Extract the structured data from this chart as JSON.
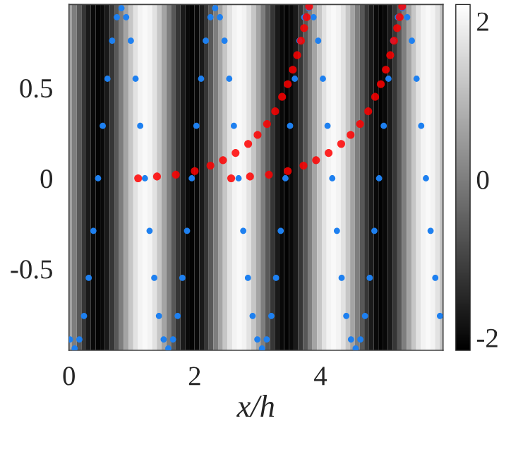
{
  "chart_data": {
    "type": "heatmap",
    "xlabel": "x/h",
    "x": [
      0.01,
      0.085,
      0.16,
      0.235,
      0.31,
      0.385,
      0.46,
      0.535,
      0.61,
      0.685,
      0.76,
      0.835,
      0.91,
      0.985,
      1.06,
      1.135,
      1.21,
      1.285,
      1.36,
      1.435,
      1.51,
      1.585,
      1.66,
      1.735,
      1.81,
      1.885,
      1.96,
      2.035,
      2.11,
      2.185,
      2.26,
      2.335,
      2.41,
      2.485,
      2.56,
      2.635,
      2.71,
      2.785,
      2.86,
      2.935,
      3.01,
      3.085,
      3.16,
      3.235,
      3.31,
      3.385,
      3.46,
      3.535,
      3.61,
      3.685,
      3.76,
      3.835,
      3.91,
      3.985,
      4.06,
      4.135,
      4.21,
      4.285,
      4.36,
      4.435,
      4.51,
      4.585,
      4.66,
      4.735,
      4.81,
      4.885,
      4.96,
      5.035,
      5.11,
      5.185,
      5.26,
      5.335,
      5.41,
      5.485,
      5.56,
      5.635,
      5.71,
      5.785,
      5.86,
      5.935
    ],
    "cells": [
      [
        0.65,
        0,
        -0.65,
        -1.23,
        -1.7,
        -2.0,
        -2.1,
        -2.0,
        -1.7,
        -1.23,
        -0.65,
        0,
        0.65,
        1.23,
        1.7,
        2.0,
        2.1,
        2.0,
        1.7,
        1.23,
        0.65,
        0,
        -0.65,
        -1.23,
        -1.7,
        -2.0,
        -2.1,
        -2.0,
        -1.7,
        -1.23,
        -0.65,
        0,
        0.65,
        1.23,
        1.7,
        2.0,
        2.1,
        2.0,
        1.7,
        1.23,
        0.65,
        0,
        -0.65,
        -1.23,
        -1.7,
        -2.0,
        -2.1,
        -2.0,
        -1.7,
        -1.23,
        -0.65,
        0,
        0.65,
        1.23,
        1.7,
        2.0,
        2.1,
        2.0,
        1.7,
        1.23,
        0.65,
        0,
        -0.65,
        -1.23,
        -1.7,
        -2.0,
        -2.1,
        -2.0,
        -1.7,
        -1.23,
        -0.65,
        0,
        0.65,
        1.23,
        1.7,
        2.0,
        2.1,
        2.0,
        1.7,
        1.23
      ]
    ],
    "clim": [
      -2.16,
      2.21
    ],
    "cticks": [
      {
        "value": -2,
        "label": "-2"
      },
      0,
      2
    ],
    "xlim": [
      0,
      5.95
    ],
    "xticks": [
      0,
      2,
      4
    ],
    "ylim": [
      -0.95,
      0.96
    ],
    "yticks": [
      {
        "value": -0.5,
        "label": "-0.5"
      },
      0,
      0.5
    ],
    "series": [
      {
        "type": "scatter",
        "color": "#1e80f0",
        "marker": "circle",
        "x": [
          0.016,
          0.09,
          0.165,
          0.239,
          0.314,
          0.388,
          0.463,
          0.537,
          0.612,
          0.686,
          0.761,
          0.835,
          0.91,
          0.984,
          1.059,
          1.133,
          1.208,
          1.282,
          1.357,
          1.431,
          1.506,
          1.58,
          1.655,
          1.729,
          1.804,
          1.878,
          1.953,
          2.027,
          2.102,
          2.176,
          2.251,
          2.325,
          2.4,
          2.474,
          2.549,
          2.623,
          2.698,
          2.772,
          2.847,
          2.921,
          2.996,
          3.07,
          3.145,
          3.219,
          3.294,
          3.368,
          3.443,
          3.517,
          3.592,
          3.666,
          3.741,
          3.815,
          3.89,
          3.964,
          4.039,
          4.113,
          4.188,
          4.262,
          4.337,
          4.411,
          4.486,
          4.56,
          4.635,
          4.709,
          4.784,
          4.858,
          4.933,
          5.007,
          5.082,
          5.156,
          5.231,
          5.305,
          5.38,
          5.454,
          5.529,
          5.603,
          5.678,
          5.752,
          5.827,
          5.901
        ],
        "values": [
          -0.89,
          -0.94,
          -0.89,
          -0.76,
          -0.55,
          -0.29,
          0,
          0.29,
          0.55,
          0.76,
          0.89,
          0.94,
          0.89,
          0.76,
          0.55,
          0.29,
          0,
          -0.29,
          -0.55,
          -0.76,
          -0.89,
          -0.94,
          -0.89,
          -0.76,
          -0.55,
          -0.29,
          0,
          0.29,
          0.55,
          0.76,
          0.89,
          0.94,
          0.89,
          0.76,
          0.55,
          0.29,
          0,
          -0.29,
          -0.55,
          -0.76,
          -0.89,
          -0.94,
          -0.89,
          -0.76,
          -0.55,
          -0.29,
          0,
          0.29,
          0.55,
          0.76,
          0.89,
          0.94,
          0.89,
          0.76,
          0.55,
          0.29,
          0,
          -0.29,
          -0.55,
          -0.76,
          -0.89,
          -0.94,
          -0.89,
          -0.76,
          -0.55,
          -0.29,
          0,
          0.29,
          0.55,
          0.76,
          0.89,
          0.94,
          0.89,
          0.76,
          0.55,
          0.29,
          0,
          -0.29,
          -0.55,
          -0.76
        ]
      },
      {
        "type": "scatter",
        "color": "#ff0000",
        "marker": "circle",
        "x": [
          1.1,
          1.4,
          1.7,
          2.0,
          2.25,
          2.45,
          2.65,
          2.85,
          3.0,
          3.15,
          3.28,
          3.39,
          3.48,
          3.56,
          3.63,
          3.69,
          3.74,
          3.78,
          3.82
        ],
        "values": [
          0,
          0.01,
          0.02,
          0.04,
          0.07,
          0.1,
          0.14,
          0.19,
          0.24,
          0.3,
          0.37,
          0.45,
          0.52,
          0.6,
          0.68,
          0.76,
          0.83,
          0.89,
          0.95
        ]
      },
      {
        "type": "scatter",
        "color": "#ff0000",
        "marker": "circle",
        "x": [
          2.58,
          2.88,
          3.18,
          3.48,
          3.73,
          3.93,
          4.13,
          4.33,
          4.48,
          4.63,
          4.76,
          4.87,
          4.96,
          5.04,
          5.11,
          5.17,
          5.22,
          5.26,
          5.3
        ],
        "values": [
          0,
          0.01,
          0.02,
          0.04,
          0.07,
          0.1,
          0.14,
          0.19,
          0.24,
          0.3,
          0.37,
          0.45,
          0.52,
          0.6,
          0.68,
          0.76,
          0.83,
          0.89,
          0.95
        ]
      }
    ]
  }
}
